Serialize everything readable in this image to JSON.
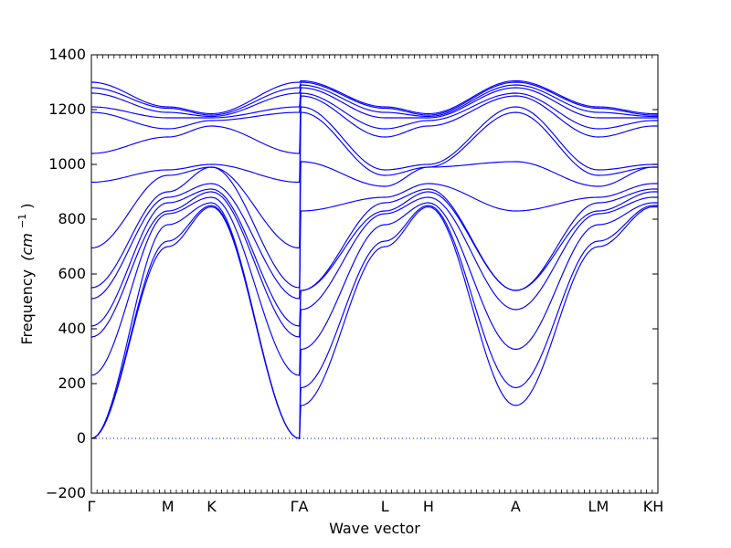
{
  "chart_data": {
    "type": "line",
    "title": "",
    "xlabel": "Wave vector",
    "ylabel": "Frequency",
    "ylabel_unit_math": "(cm",
    "ylabel_unit_sup": "−1",
    "ylim": [
      -200,
      1400
    ],
    "yticks": [
      -200,
      0,
      200,
      400,
      600,
      800,
      1000,
      1200,
      1400
    ],
    "high_symmetry_points": [
      {
        "label": "Γ",
        "x": 0.0
      },
      {
        "label": "M",
        "x": 0.135
      },
      {
        "label": "K",
        "x": 0.212
      },
      {
        "label": "ΓA",
        "x": 0.367
      },
      {
        "label": "L",
        "x": 0.518
      },
      {
        "label": "H",
        "x": 0.595
      },
      {
        "label": "A",
        "x": 0.749
      },
      {
        "label": "LM",
        "x": 0.895
      },
      {
        "label": "KH",
        "x": 0.992
      }
    ],
    "xlim": [
      0,
      1
    ],
    "zero_line": {
      "y": 0,
      "style": "dotted"
    },
    "series_color": "#0000ff",
    "bands": [
      {
        "points": [
          [
            0,
            0
          ],
          [
            0.135,
            700
          ],
          [
            0.212,
            845
          ],
          [
            0.367,
            0
          ],
          [
            0.37,
            120
          ],
          [
            0.518,
            700
          ],
          [
            0.595,
            845
          ],
          [
            0.749,
            120
          ],
          [
            0.895,
            700
          ],
          [
            0.992,
            845
          ],
          [
            1,
            845
          ]
        ]
      },
      {
        "points": [
          [
            0,
            0
          ],
          [
            0.135,
            720
          ],
          [
            0.212,
            850
          ],
          [
            0.367,
            0
          ],
          [
            0.37,
            185
          ],
          [
            0.518,
            720
          ],
          [
            0.595,
            850
          ],
          [
            0.749,
            185
          ],
          [
            0.895,
            720
          ],
          [
            0.992,
            850
          ],
          [
            1,
            850
          ]
        ]
      },
      {
        "points": [
          [
            0,
            0
          ],
          [
            0.135,
            780
          ],
          [
            0.212,
            860
          ],
          [
            0.367,
            0
          ],
          [
            0.37,
            325
          ],
          [
            0.518,
            780
          ],
          [
            0.595,
            860
          ],
          [
            0.749,
            325
          ],
          [
            0.895,
            780
          ],
          [
            0.992,
            860
          ],
          [
            1,
            860
          ]
        ]
      },
      {
        "points": [
          [
            0,
            230
          ],
          [
            0.135,
            820
          ],
          [
            0.212,
            880
          ],
          [
            0.367,
            230
          ],
          [
            0.37,
            470
          ],
          [
            0.518,
            820
          ],
          [
            0.595,
            880
          ],
          [
            0.749,
            470
          ],
          [
            0.895,
            820
          ],
          [
            0.992,
            880
          ],
          [
            1,
            880
          ]
        ]
      },
      {
        "points": [
          [
            0,
            370
          ],
          [
            0.135,
            830
          ],
          [
            0.212,
            900
          ],
          [
            0.367,
            370
          ],
          [
            0.37,
            540
          ],
          [
            0.518,
            830
          ],
          [
            0.595,
            900
          ],
          [
            0.749,
            540
          ],
          [
            0.895,
            830
          ],
          [
            0.992,
            900
          ],
          [
            1,
            900
          ]
        ]
      },
      {
        "points": [
          [
            0,
            410
          ],
          [
            0.135,
            860
          ],
          [
            0.212,
            910
          ],
          [
            0.367,
            410
          ],
          [
            0.37,
            540
          ],
          [
            0.518,
            860
          ],
          [
            0.595,
            910
          ],
          [
            0.749,
            540
          ],
          [
            0.895,
            860
          ],
          [
            0.992,
            910
          ],
          [
            1,
            910
          ]
        ]
      },
      {
        "points": [
          [
            0,
            510
          ],
          [
            0.135,
            880
          ],
          [
            0.212,
            930
          ],
          [
            0.367,
            510
          ],
          [
            0.37,
            830
          ],
          [
            0.518,
            880
          ],
          [
            0.595,
            930
          ],
          [
            0.749,
            830
          ],
          [
            0.895,
            880
          ],
          [
            0.992,
            930
          ],
          [
            1,
            930
          ]
        ]
      },
      {
        "points": [
          [
            0,
            550
          ],
          [
            0.135,
            900
          ],
          [
            0.212,
            990
          ],
          [
            0.367,
            550
          ],
          [
            0.37,
            1010
          ],
          [
            0.518,
            920
          ],
          [
            0.595,
            990
          ],
          [
            0.749,
            1010
          ],
          [
            0.895,
            920
          ],
          [
            0.992,
            990
          ],
          [
            1,
            990
          ]
        ]
      },
      {
        "points": [
          [
            0,
            695
          ],
          [
            0.135,
            960
          ],
          [
            0.212,
            990
          ],
          [
            0.367,
            695
          ],
          [
            0.37,
            1190
          ],
          [
            0.518,
            960
          ],
          [
            0.595,
            990
          ],
          [
            0.749,
            1190
          ],
          [
            0.895,
            960
          ],
          [
            0.992,
            990
          ],
          [
            1,
            990
          ]
        ]
      },
      {
        "points": [
          [
            0,
            935
          ],
          [
            0.135,
            980
          ],
          [
            0.212,
            1000
          ],
          [
            0.367,
            935
          ],
          [
            0.37,
            1210
          ],
          [
            0.518,
            980
          ],
          [
            0.595,
            1000
          ],
          [
            0.749,
            1210
          ],
          [
            0.895,
            980
          ],
          [
            0.992,
            1000
          ],
          [
            1,
            1000
          ]
        ]
      },
      {
        "points": [
          [
            0,
            1040
          ],
          [
            0.135,
            1100
          ],
          [
            0.212,
            1140
          ],
          [
            0.367,
            1040
          ],
          [
            0.37,
            1250
          ],
          [
            0.518,
            1100
          ],
          [
            0.595,
            1140
          ],
          [
            0.749,
            1250
          ],
          [
            0.895,
            1100
          ],
          [
            0.992,
            1140
          ],
          [
            1,
            1140
          ]
        ]
      },
      {
        "points": [
          [
            0,
            1190
          ],
          [
            0.135,
            1130
          ],
          [
            0.212,
            1160
          ],
          [
            0.367,
            1190
          ],
          [
            0.37,
            1260
          ],
          [
            0.518,
            1130
          ],
          [
            0.595,
            1160
          ],
          [
            0.749,
            1260
          ],
          [
            0.895,
            1130
          ],
          [
            0.992,
            1160
          ],
          [
            1,
            1160
          ]
        ]
      },
      {
        "points": [
          [
            0,
            1210
          ],
          [
            0.135,
            1170
          ],
          [
            0.212,
            1170
          ],
          [
            0.367,
            1210
          ],
          [
            0.37,
            1280
          ],
          [
            0.518,
            1170
          ],
          [
            0.595,
            1170
          ],
          [
            0.749,
            1280
          ],
          [
            0.895,
            1170
          ],
          [
            0.992,
            1170
          ],
          [
            1,
            1170
          ]
        ]
      },
      {
        "points": [
          [
            0,
            1260
          ],
          [
            0.135,
            1190
          ],
          [
            0.212,
            1175
          ],
          [
            0.367,
            1260
          ],
          [
            0.37,
            1290
          ],
          [
            0.518,
            1190
          ],
          [
            0.595,
            1175
          ],
          [
            0.749,
            1290
          ],
          [
            0.895,
            1190
          ],
          [
            0.992,
            1175
          ],
          [
            1,
            1175
          ]
        ]
      },
      {
        "points": [
          [
            0,
            1280
          ],
          [
            0.135,
            1205
          ],
          [
            0.212,
            1180
          ],
          [
            0.367,
            1280
          ],
          [
            0.37,
            1300
          ],
          [
            0.518,
            1205
          ],
          [
            0.595,
            1180
          ],
          [
            0.749,
            1300
          ],
          [
            0.895,
            1205
          ],
          [
            0.992,
            1180
          ],
          [
            1,
            1180
          ]
        ]
      },
      {
        "points": [
          [
            0,
            1300
          ],
          [
            0.135,
            1210
          ],
          [
            0.212,
            1185
          ],
          [
            0.367,
            1300
          ],
          [
            0.37,
            1305
          ],
          [
            0.518,
            1210
          ],
          [
            0.595,
            1185
          ],
          [
            0.749,
            1305
          ],
          [
            0.895,
            1210
          ],
          [
            0.992,
            1185
          ],
          [
            1,
            1185
          ]
        ]
      }
    ]
  }
}
